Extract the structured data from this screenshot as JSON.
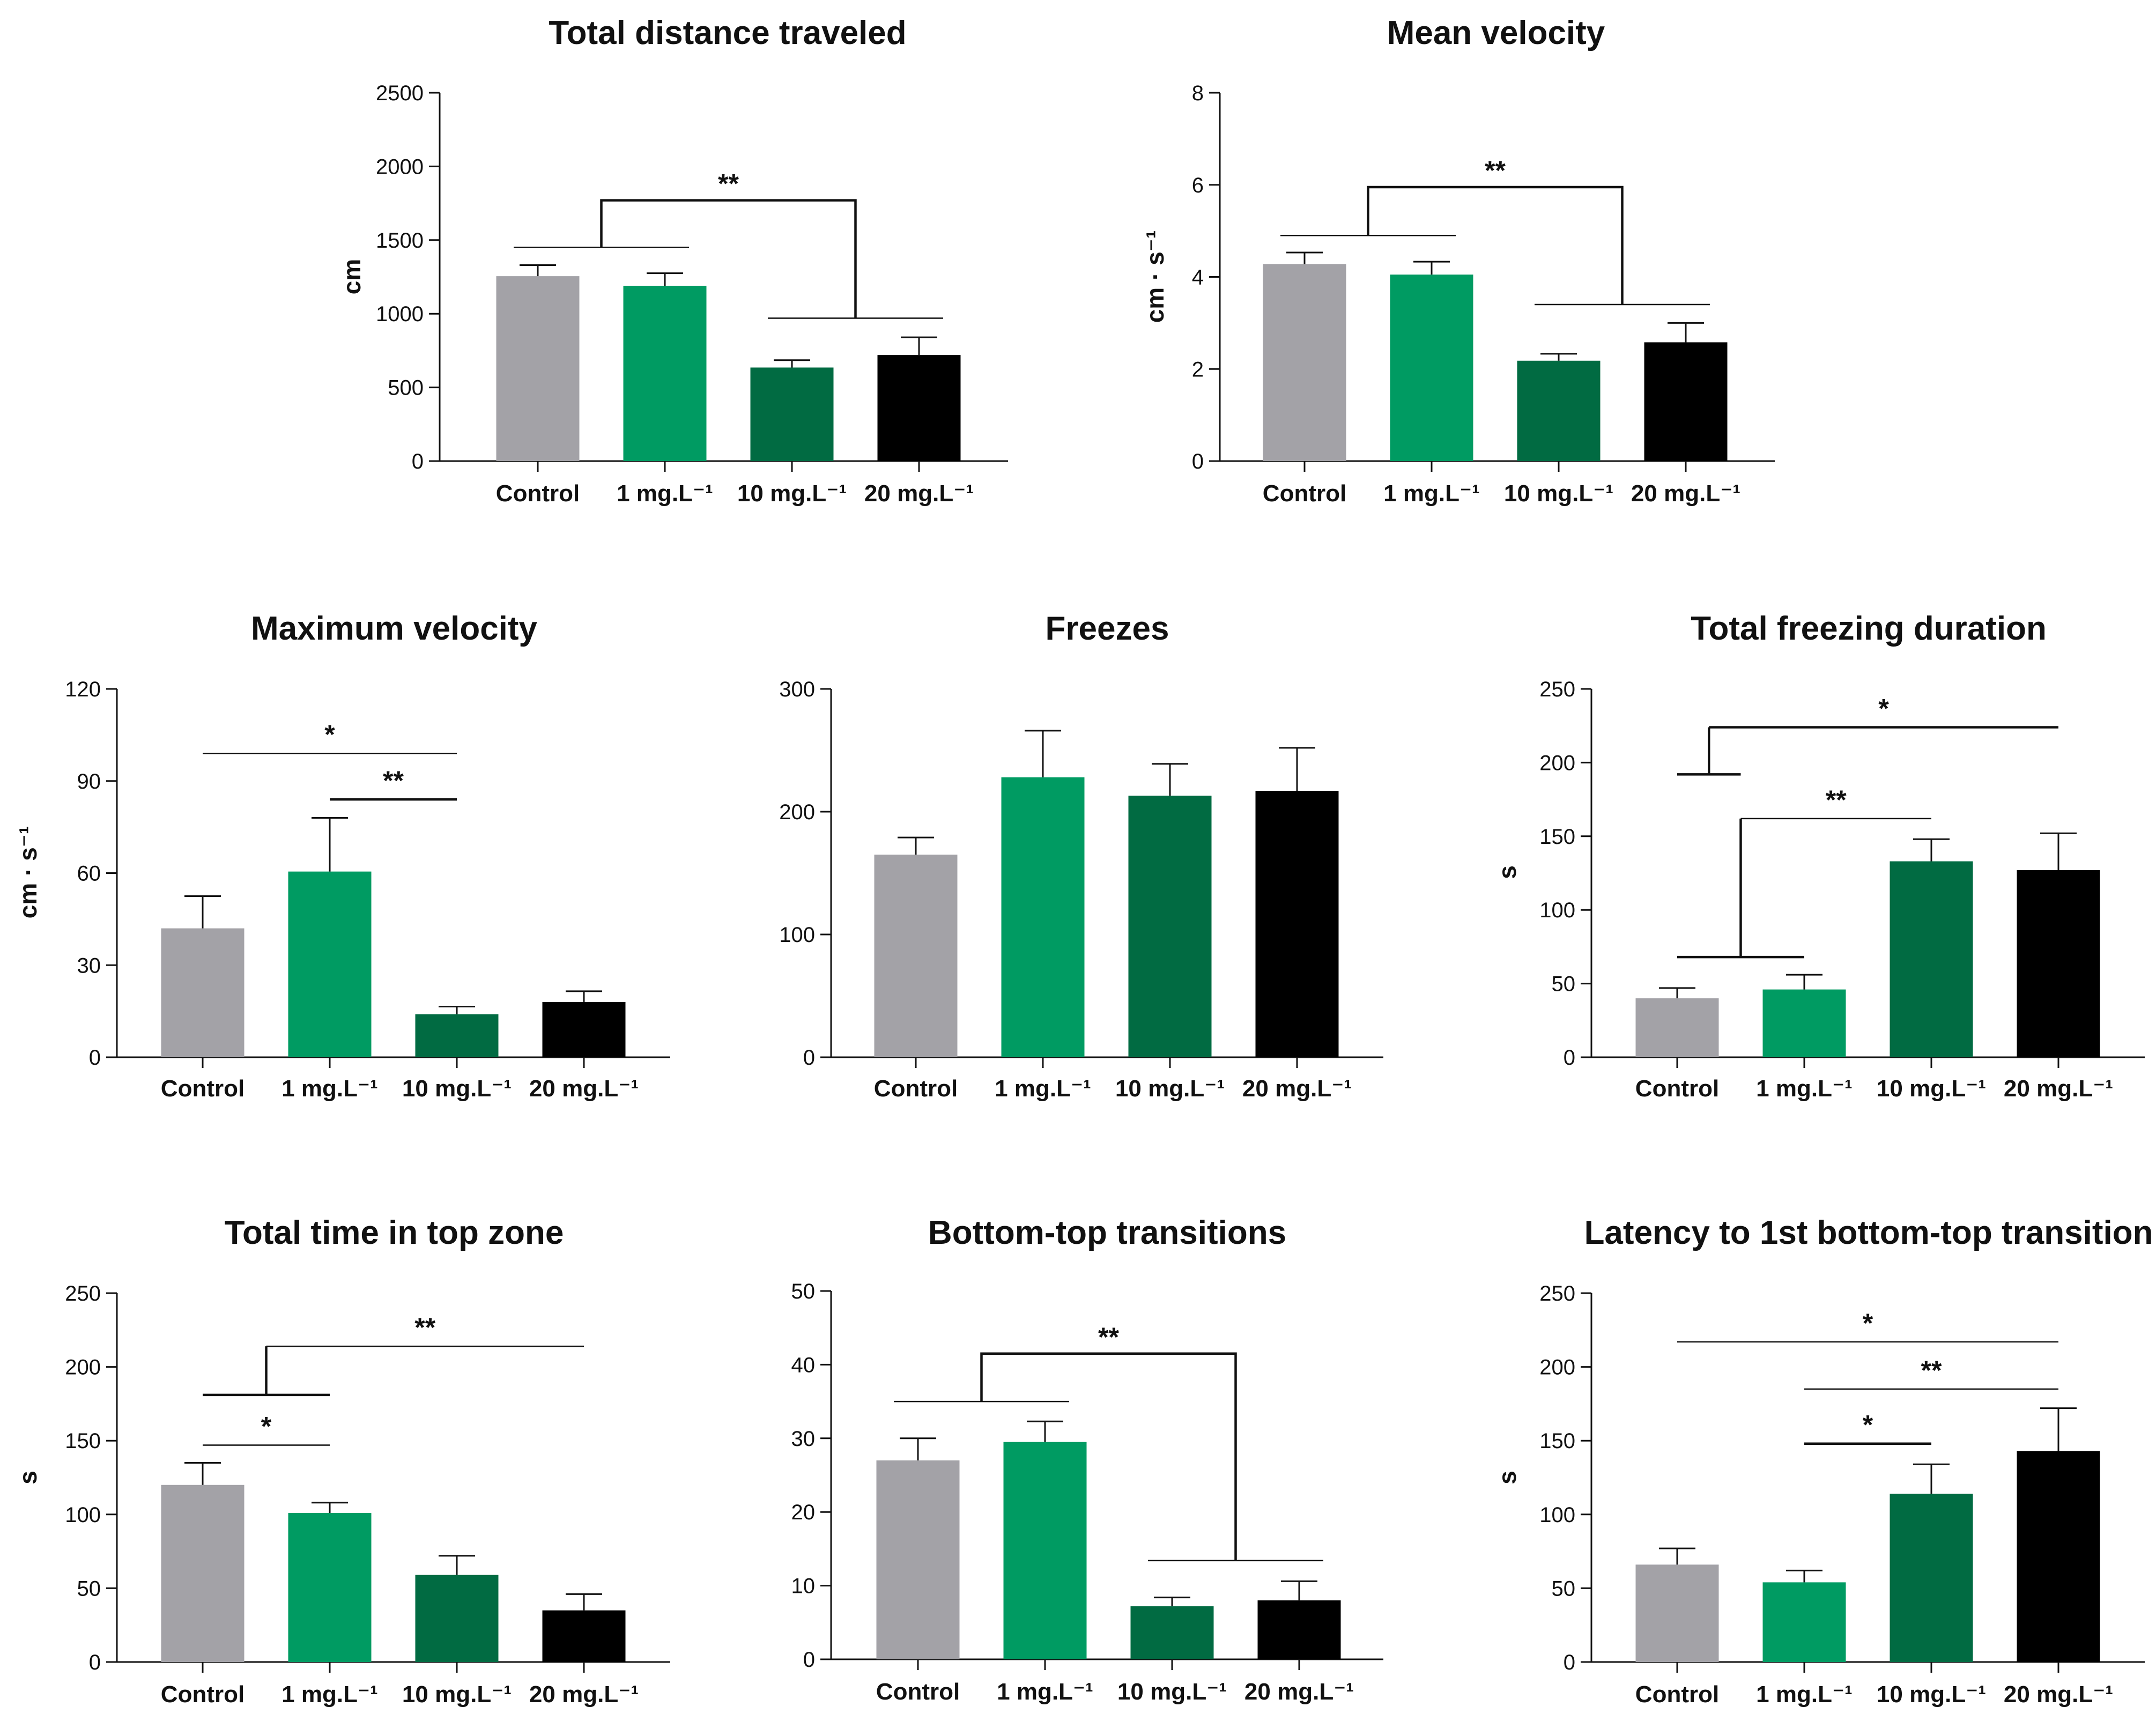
{
  "colors": {
    "Control": "#a3a2a7",
    "1 mg.L⁻¹": "#009b62",
    "10 mg.L⁻¹": "#016b42",
    "20 mg.L⁻¹": "#000000"
  },
  "chart_data": [
    {
      "id": "total-distance",
      "type": "bar",
      "title": "Total distance traveled",
      "xlabel": "",
      "ylabel": "cm",
      "ylim": [
        0,
        2500
      ],
      "yticks": [
        0,
        500,
        1000,
        1500,
        2000,
        2500
      ],
      "categories": [
        "Control",
        "1 mg.L⁻¹",
        "10 mg.L⁻¹",
        "20 mg.L⁻¹"
      ],
      "values": [
        1255,
        1190,
        635,
        720
      ],
      "errors": [
        75,
        85,
        50,
        120
      ],
      "annotations": [
        {
          "type": "group",
          "left": [
            0,
            1
          ],
          "right": [
            2,
            3
          ],
          "y_left": 1450,
          "y_right": 970,
          "y_top": 1770,
          "label": "**"
        }
      ]
    },
    {
      "id": "mean-velocity",
      "type": "bar",
      "title": "Mean velocity",
      "xlabel": "",
      "ylabel": "cm · s⁻¹",
      "ylim": [
        0,
        8
      ],
      "yticks": [
        0,
        2,
        4,
        6,
        8
      ],
      "categories": [
        "Control",
        "1 mg.L⁻¹",
        "10 mg.L⁻¹",
        "20 mg.L⁻¹"
      ],
      "values": [
        4.28,
        4.05,
        2.18,
        2.58
      ],
      "errors": [
        0.25,
        0.28,
        0.15,
        0.42
      ],
      "annotations": [
        {
          "type": "group",
          "left": [
            0,
            1
          ],
          "right": [
            2,
            3
          ],
          "y_left": 4.9,
          "y_right": 3.4,
          "y_top": 5.95,
          "label": "**"
        }
      ]
    },
    {
      "id": "maximum-velocity",
      "type": "bar",
      "title": "Maximum velocity",
      "xlabel": "",
      "ylabel": "cm · s⁻¹",
      "ylim": [
        0,
        120
      ],
      "yticks": [
        0,
        30,
        60,
        90,
        120
      ],
      "categories": [
        "Control",
        "1 mg.L⁻¹",
        "10 mg.L⁻¹",
        "20 mg.L⁻¹"
      ],
      "values": [
        42,
        60.5,
        14,
        18
      ],
      "errors": [
        10.5,
        17.5,
        2.5,
        3.5
      ],
      "annotations": [
        {
          "type": "line",
          "from": 0,
          "to": 2,
          "y": 99,
          "label": "*"
        },
        {
          "type": "line",
          "from": 1,
          "to": 2,
          "y": 84,
          "label": "**",
          "thick": true
        }
      ]
    },
    {
      "id": "freezes",
      "type": "bar",
      "title": "Freezes",
      "xlabel": "",
      "ylabel": "",
      "ylim": [
        0,
        300
      ],
      "yticks": [
        0,
        100,
        200,
        300
      ],
      "categories": [
        "Control",
        "1 mg.L⁻¹",
        "10 mg.L⁻¹",
        "20 mg.L⁻¹"
      ],
      "values": [
        165,
        228,
        213,
        217
      ],
      "errors": [
        14,
        38,
        26,
        35
      ],
      "annotations": []
    },
    {
      "id": "total-freezing-duration",
      "type": "bar",
      "title": "Total freezing duration",
      "xlabel": "",
      "ylabel": "s",
      "ylim": [
        0,
        250
      ],
      "yticks": [
        0,
        50,
        100,
        150,
        200,
        250
      ],
      "categories": [
        "Control",
        "1 mg.L⁻¹",
        "10 mg.L⁻¹",
        "20 mg.L⁻¹"
      ],
      "values": [
        40,
        46,
        133,
        127
      ],
      "errors": [
        7,
        10,
        15,
        25
      ],
      "annotations": [
        {
          "type": "branch",
          "join_from": 0,
          "join_to": 0.5,
          "y_join": 192,
          "y_top": 224,
          "end": 3,
          "thin_end": false,
          "label": "*"
        },
        {
          "type": "branch",
          "join_from": 0,
          "join_to": 1,
          "y_join": 68,
          "y_top": 162,
          "end": 2,
          "thin_end": true,
          "label": "**"
        }
      ]
    },
    {
      "id": "time-top-zone",
      "type": "bar",
      "title": "Total time in top zone",
      "xlabel": "",
      "ylabel": "s",
      "ylim": [
        0,
        250
      ],
      "yticks": [
        0,
        50,
        100,
        150,
        200,
        250
      ],
      "categories": [
        "Control",
        "1 mg.L⁻¹",
        "10 mg.L⁻¹",
        "20 mg.L⁻¹"
      ],
      "values": [
        120,
        101,
        59,
        35
      ],
      "errors": [
        15,
        7,
        13,
        11
      ],
      "annotations": [
        {
          "type": "branch",
          "join_from": 0,
          "join_to": 1,
          "y_join": 181,
          "y_top": 214,
          "end": 3,
          "thin_end": true,
          "label": "**"
        },
        {
          "type": "line",
          "from": 0,
          "to": 1,
          "y": 147,
          "label": "*"
        }
      ]
    },
    {
      "id": "bottom-top-transitions",
      "type": "bar",
      "title": "Bottom-top transitions",
      "xlabel": "",
      "ylabel": "",
      "ylim": [
        0,
        50
      ],
      "yticks": [
        0,
        10,
        20,
        30,
        40,
        50
      ],
      "categories": [
        "Control",
        "1 mg.L⁻¹",
        "10 mg.L⁻¹",
        "20 mg.L⁻¹"
      ],
      "values": [
        27,
        29.5,
        7.2,
        8
      ],
      "errors": [
        3,
        2.8,
        1.2,
        2.6
      ],
      "annotations": [
        {
          "type": "group",
          "left": [
            0,
            1
          ],
          "right": [
            2,
            3
          ],
          "y_left": 35,
          "y_right": 13.4,
          "y_top": 41.5,
          "label": "**"
        }
      ]
    },
    {
      "id": "latency",
      "type": "bar",
      "title": "Latency to 1st bottom-top transition",
      "xlabel": "",
      "ylabel": "s",
      "ylim": [
        0,
        250
      ],
      "yticks": [
        0,
        50,
        100,
        150,
        200,
        250
      ],
      "categories": [
        "Control",
        "1 mg.L⁻¹",
        "10 mg.L⁻¹",
        "20 mg.L⁻¹"
      ],
      "values": [
        66,
        54,
        114,
        143
      ],
      "errors": [
        11,
        8,
        20,
        29
      ],
      "annotations": [
        {
          "type": "line",
          "from": 0,
          "to": 3,
          "y": 217,
          "label": "*"
        },
        {
          "type": "line",
          "from": 1,
          "to": 3,
          "y": 185,
          "label": "**"
        },
        {
          "type": "line",
          "from": 1,
          "to": 2,
          "y": 148,
          "label": "*",
          "thick": true
        }
      ]
    }
  ]
}
